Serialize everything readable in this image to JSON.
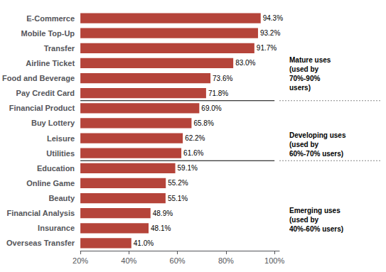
{
  "chart_data": {
    "type": "bar",
    "orientation": "horizontal",
    "categories": [
      "E-Commerce",
      "Mobile Top-Up",
      "Transfer",
      "Airline Ticket",
      "Food and Beverage",
      "Pay Credit Card",
      "Financial Product",
      "Buy Lottery",
      "Leisure",
      "Utilities",
      "Education",
      "Online Game",
      "Beauty",
      "Financial Analysis",
      "Insurance",
      "Overseas Transfer"
    ],
    "values": [
      94.3,
      93.2,
      91.7,
      83.0,
      73.6,
      71.8,
      69.0,
      65.8,
      62.2,
      61.6,
      59.1,
      55.2,
      55.1,
      48.9,
      48.1,
      41.0
    ],
    "value_labels": [
      "94.3%",
      "93.2%",
      "91.7%",
      "83.0%",
      "73.6%",
      "71.8%",
      "69.0%",
      "65.8%",
      "62.2%",
      "61.6%",
      "59.1%",
      "55.2%",
      "55.1%",
      "48.9%",
      "48.1%",
      "41.0%"
    ],
    "data_labels": true,
    "color": "#b5443a",
    "xlim": [
      20,
      102
    ],
    "xticks": [
      {
        "value": 20,
        "label": "20%"
      },
      {
        "value": 40,
        "label": "40%"
      },
      {
        "value": 60,
        "label": "60%"
      },
      {
        "value": 80,
        "label": "80%"
      },
      {
        "value": 100,
        "label": "100%"
      }
    ],
    "grid": false,
    "annotations": [
      {
        "text": "Mature uses\n(used by\n70%-90%\nusers)",
        "from": "E-Commerce",
        "to": "Pay Credit Card"
      },
      {
        "text": "Developing uses\n(used by\n60%-70% users)",
        "from": "Financial Product",
        "to": "Utilities"
      },
      {
        "text": "Emerging uses\n(used by\n40%-60% users)",
        "from": "Education",
        "to": "Overseas Transfer"
      }
    ]
  }
}
